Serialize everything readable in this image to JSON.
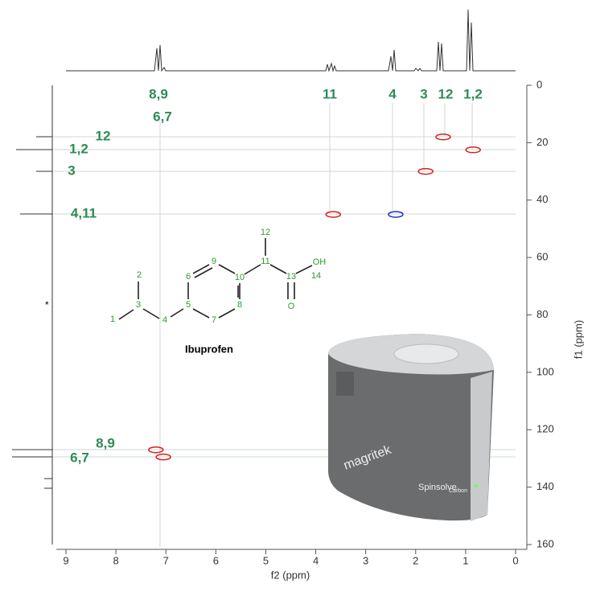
{
  "chart_data": {
    "type": "scatter",
    "xlabel": "f2 (ppm)",
    "ylabel": "f1 (ppm)",
    "xlim": [
      9,
      0
    ],
    "ylim": [
      0,
      160
    ],
    "xticks": [
      9,
      8,
      7,
      6,
      5,
      4,
      3,
      2,
      1,
      0
    ],
    "yticks": [
      0,
      20,
      40,
      60,
      80,
      100,
      120,
      140,
      160
    ],
    "x": [
      1.45,
      0.85,
      1.8,
      3.65,
      2.4,
      7.2,
      7.05
    ],
    "values": [
      18,
      22.5,
      30,
      45,
      45,
      127,
      129.5
    ],
    "colors": [
      "#d62020",
      "#d62020",
      "#d62020",
      "#d62020",
      "#2030c8",
      "#d62020",
      "#d62020"
    ],
    "annotations": [
      "8,9",
      "6,7",
      "11",
      "4",
      "3",
      "12",
      "1,2",
      "12",
      "1,2",
      "3",
      "4,11",
      "8,9",
      "6,7"
    ]
  },
  "molecule": {
    "name": "Ibuprofen",
    "atoms": [
      "1",
      "2",
      "3",
      "4",
      "5",
      "6",
      "7",
      "8",
      "9",
      "10",
      "11",
      "12",
      "13",
      "14"
    ],
    "hydroxyl": "OH",
    "oxygen": "O"
  },
  "device": {
    "brand": "magritek",
    "model": "Spinsolve",
    "variant": "Carbon"
  }
}
